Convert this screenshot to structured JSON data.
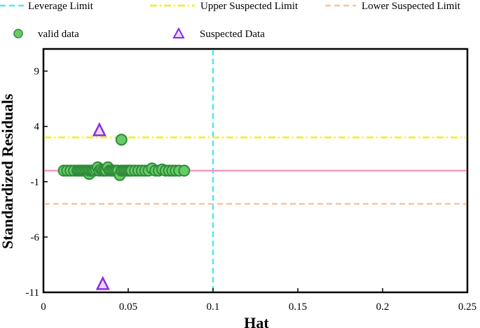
{
  "chart_data": {
    "type": "scatter",
    "title": "",
    "xlabel": "Hat",
    "ylabel": "Standardized Residuals",
    "xlim": [
      0,
      0.25
    ],
    "ylim": [
      -11,
      11
    ],
    "xticks": [
      0,
      0.05,
      0.1,
      0.15,
      0.2,
      0.25
    ],
    "xtick_labels": [
      "0",
      "0.05",
      "0.1",
      "0.15",
      "0.2",
      "0.25"
    ],
    "yticks": [
      -11,
      -6,
      -1,
      4,
      9
    ],
    "ytick_labels": [
      "-11",
      "-6",
      "-1",
      "4",
      "9"
    ],
    "grid": false,
    "legend": {
      "placement": "top",
      "entries": [
        {
          "label": "Leverage Limit",
          "kind": "line",
          "color": "#55e6ee",
          "dash": "dash"
        },
        {
          "label": "Upper Suspected Limit",
          "kind": "line",
          "color": "#f2ee1a",
          "dash": "dashdot"
        },
        {
          "label": "Lower Suspected Limit",
          "kind": "line",
          "color": "#f7c49a",
          "dash": "dash"
        },
        {
          "label": "valid data",
          "kind": "circle",
          "color": "#66cc66"
        },
        {
          "label": "Suspected Data",
          "kind": "triangle",
          "color": "#8a2be2"
        }
      ]
    },
    "reference_lines": [
      {
        "name": "leverage-limit",
        "orientation": "vertical",
        "value": 0.1,
        "color": "#55e6ee"
      },
      {
        "name": "upper-suspected-limit",
        "orientation": "horizontal",
        "value": 3,
        "color": "#f2ee1a"
      },
      {
        "name": "lower-suspected-limit",
        "orientation": "horizontal",
        "value": -3,
        "color": "#f7c49a"
      },
      {
        "name": "zero-line",
        "orientation": "horizontal",
        "value": 0,
        "color": "#f49ac1"
      }
    ],
    "series": [
      {
        "name": "valid data",
        "marker": "circle",
        "color": "#66cc66",
        "edge": "#2e8b3a",
        "x": [
          0.012,
          0.014,
          0.016,
          0.018,
          0.02,
          0.021,
          0.022,
          0.023,
          0.024,
          0.025,
          0.026,
          0.027,
          0.027,
          0.028,
          0.029,
          0.03,
          0.031,
          0.032,
          0.033,
          0.034,
          0.035,
          0.036,
          0.037,
          0.038,
          0.039,
          0.04,
          0.041,
          0.042,
          0.043,
          0.044,
          0.045,
          0.046,
          0.047,
          0.048,
          0.049,
          0.05,
          0.051,
          0.052,
          0.054,
          0.056,
          0.058,
          0.06,
          0.062,
          0.064,
          0.066,
          0.068,
          0.07,
          0.072,
          0.074,
          0.076,
          0.078,
          0.08,
          0.083,
          0.046
        ],
        "y": [
          0,
          0,
          0,
          0,
          0,
          0,
          0,
          0,
          0,
          0,
          0,
          -0.3,
          0,
          0,
          0,
          0,
          0.1,
          0.3,
          0,
          0.1,
          0,
          0,
          0,
          0.3,
          0,
          0,
          0,
          0,
          0,
          0,
          -0.4,
          0,
          0,
          0,
          0,
          0,
          0,
          0,
          0,
          0,
          0,
          0,
          0,
          0.2,
          0,
          0,
          0.1,
          0,
          0,
          0,
          0,
          0,
          0,
          2.8
        ]
      },
      {
        "name": "Suspected Data",
        "marker": "triangle",
        "color": "#e8d8f5",
        "edge": "#8a2be2",
        "x": [
          0.033,
          0.035
        ],
        "y": [
          3.6,
          -10.3
        ]
      }
    ]
  }
}
